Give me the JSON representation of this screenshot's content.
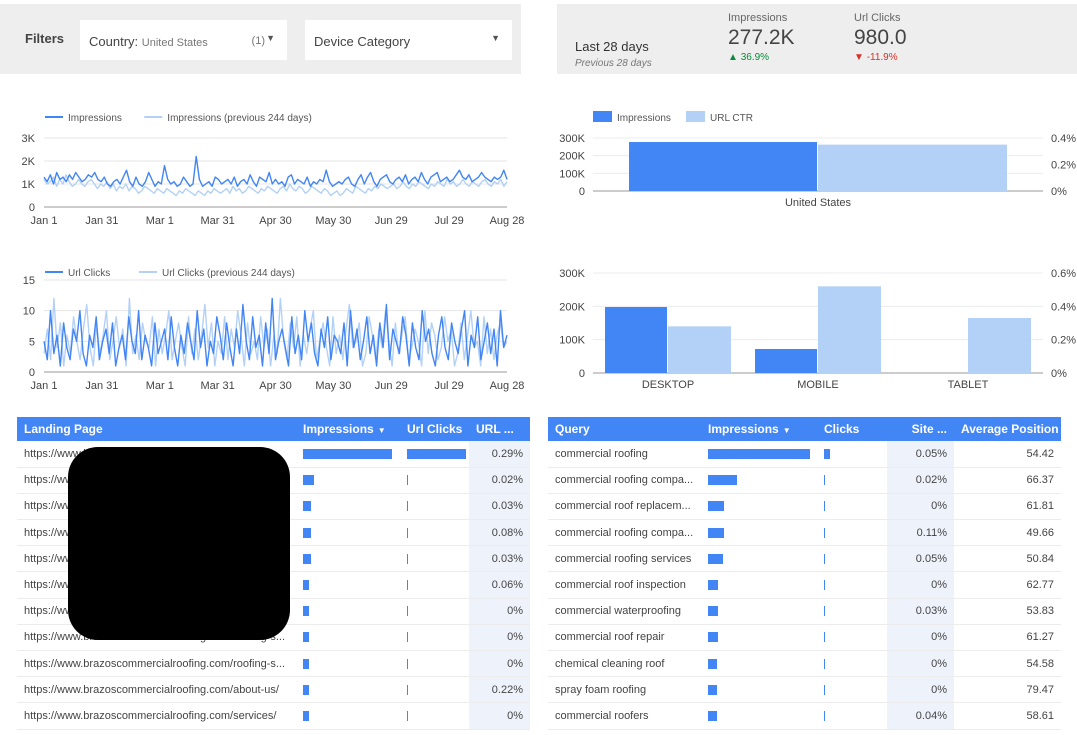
{
  "filters": {
    "label": "Filters",
    "country_label": "Country:",
    "country_value": "United States",
    "country_count": "(1)",
    "device_label": "Device Category"
  },
  "scorecard": {
    "range": "Last 28 days",
    "previous": "Previous 28 days",
    "impressions_label": "Impressions",
    "impressions_value": "277.2K",
    "impressions_delta": "36.9%",
    "clicks_label": "Url Clicks",
    "clicks_value": "980.0",
    "clicks_delta": "-11.9%"
  },
  "colors": {
    "primary": "#4285f4",
    "secondary": "#b3d1f7",
    "up": "#0a8a3a",
    "down": "#d93025"
  },
  "chart_data": [
    {
      "type": "line",
      "x_ticks": [
        "Jan 1",
        "Jan 31",
        "Mar 1",
        "Mar 31",
        "Apr 30",
        "May 30",
        "Jun 29",
        "Jul 29",
        "Aug 28"
      ],
      "y_ticks": [
        "0",
        "1K",
        "2K",
        "3K"
      ],
      "ylim": [
        0,
        3000
      ],
      "series": [
        {
          "name": "Impressions",
          "color": "#4285f4",
          "values": [
            1300,
            1100,
            1400,
            1000,
            1500,
            1200,
            1300,
            1100,
            1400,
            1200,
            1500,
            1300,
            1100,
            1200,
            1400,
            1300,
            1500,
            1200,
            1100,
            1300,
            1000,
            900,
            1100,
            1200,
            1000,
            1300,
            1600,
            1100,
            900,
            1300,
            1000,
            900,
            1100,
            1500,
            1200,
            900,
            1100,
            1000,
            1800,
            1200,
            1000,
            1100,
            900,
            1000,
            1300,
            1100,
            900,
            1000,
            2200,
            1200,
            900,
            1000,
            1100,
            900,
            1300,
            1200,
            1000,
            1100,
            1200,
            1000,
            1300,
            900,
            1100,
            1200,
            1000,
            1400,
            1100,
            900,
            1300,
            1200,
            1100,
            1500,
            1000,
            1200,
            1000,
            1100,
            900,
            1300,
            1400,
            1000,
            1200,
            1100,
            1000,
            1300,
            900,
            1100,
            1000,
            1200,
            1100,
            1600,
            1100,
            900,
            1000,
            1100,
            1000,
            1200,
            1300,
            1000,
            900,
            1200,
            1400,
            1000,
            1300,
            1500,
            1100,
            900,
            1200,
            1300,
            1400,
            1100,
            1000,
            1200,
            1300,
            1100,
            1400,
            1000,
            1200,
            1300,
            1100,
            1500,
            1200,
            1000,
            1300,
            1400,
            1500,
            1100,
            1200,
            1300,
            1100,
            1200,
            1400,
            1600,
            1300,
            1200,
            1400,
            1100,
            1200,
            1300,
            1500,
            1300,
            1200,
            1100,
            1300,
            1200,
            1300,
            1600,
            1200
          ]
        },
        {
          "name": "Impressions (previous 244 days)",
          "color": "#b3d1f7",
          "values": [
            1200,
            1000,
            1100,
            1300,
            900,
            1200,
            1000,
            1400,
            1100,
            900,
            1000,
            1200,
            1000,
            900,
            1100,
            1200,
            1000,
            800,
            1000,
            900,
            1100,
            800,
            1000,
            700,
            900,
            800,
            1000,
            700,
            900,
            800,
            600,
            700,
            900,
            800,
            700,
            600,
            800,
            700,
            600,
            800,
            700,
            600,
            500,
            700,
            600,
            800,
            700,
            600,
            500,
            700,
            600,
            500,
            700,
            600,
            800,
            700,
            600,
            700,
            800,
            600,
            900,
            700,
            800,
            600,
            700,
            900,
            800,
            700,
            600,
            800,
            700,
            900,
            800,
            700,
            600,
            800,
            900,
            700,
            1000,
            800,
            700,
            900,
            800,
            600,
            700,
            900,
            800,
            700,
            600,
            800,
            700,
            500,
            600,
            700,
            500,
            600,
            800,
            700,
            600,
            900,
            800,
            700,
            600,
            800,
            700,
            900,
            800,
            1000,
            900,
            800,
            900,
            1000,
            800,
            900,
            1100,
            900,
            800,
            1000,
            900,
            1100,
            1000,
            900,
            800,
            1000,
            900,
            1100,
            1000,
            900,
            1200,
            1000,
            1100,
            900,
            1000,
            1200,
            1000,
            900,
            1100,
            1000,
            900,
            1100,
            1200,
            1000,
            900,
            1100,
            1000,
            1200,
            900,
            1100
          ]
        }
      ]
    },
    {
      "type": "line",
      "x_ticks": [
        "Jan 1",
        "Jan 31",
        "Mar 1",
        "Mar 31",
        "Apr 30",
        "May 30",
        "Jun 29",
        "Jul 29",
        "Aug 28"
      ],
      "y_ticks": [
        "0",
        "5",
        "10",
        "15"
      ],
      "ylim": [
        0,
        15
      ],
      "series": [
        {
          "name": "Url Clicks",
          "color": "#4285f4",
          "values": [
            5,
            2,
            10,
            3,
            6,
            1,
            8,
            4,
            2,
            7,
            5,
            10,
            3,
            1,
            6,
            4,
            9,
            2,
            5,
            7,
            3,
            8,
            1,
            4,
            6,
            2,
            9,
            5,
            3,
            10,
            2,
            6,
            4,
            1,
            8,
            3,
            5,
            7,
            2,
            9,
            4,
            1,
            6,
            3,
            8,
            5,
            2,
            10,
            4,
            7,
            1,
            5,
            3,
            9,
            6,
            2,
            8,
            4,
            1,
            7,
            3,
            11,
            5,
            2,
            9,
            4,
            6,
            1,
            8,
            3,
            12,
            2,
            5,
            7,
            4,
            1,
            9,
            3,
            6,
            2,
            10,
            5,
            8,
            3,
            1,
            7,
            4,
            9,
            2,
            6,
            5,
            3,
            8,
            1,
            10,
            4,
            7,
            2,
            5,
            9,
            3,
            6,
            1,
            8,
            4,
            11,
            2,
            7,
            5,
            3,
            9,
            6,
            1,
            8,
            4,
            2,
            10,
            5,
            7,
            3,
            1,
            6,
            9,
            4,
            2,
            8,
            5,
            3,
            7,
            10,
            1,
            6,
            4,
            9,
            2,
            5,
            8,
            3,
            7,
            1,
            10,
            4,
            6
          ]
        },
        {
          "name": "Url Clicks (previous 244 days)",
          "color": "#b3d1f7",
          "values": [
            3,
            7,
            2,
            12,
            4,
            8,
            1,
            6,
            3,
            9,
            5,
            2,
            7,
            11,
            4,
            1,
            8,
            3,
            6,
            10,
            2,
            5,
            9,
            4,
            7,
            1,
            12,
            3,
            6,
            2,
            8,
            5,
            4,
            9,
            1,
            7,
            3,
            6,
            10,
            2,
            5,
            8,
            4,
            1,
            9,
            3,
            7,
            2,
            6,
            11,
            4,
            8,
            1,
            5,
            3,
            9,
            2,
            7,
            4,
            10,
            6,
            1,
            8,
            3,
            5,
            2,
            9,
            4,
            7,
            1,
            6,
            3,
            12,
            5,
            2,
            8,
            4,
            9,
            1,
            6,
            3,
            7,
            10,
            2,
            5,
            8,
            4,
            1,
            9,
            3,
            6,
            2,
            7,
            11,
            4,
            5,
            8,
            1,
            3,
            9,
            6,
            2,
            7,
            4,
            10,
            5,
            1,
            8,
            3,
            6,
            9,
            2,
            4,
            7,
            5,
            1,
            10,
            3,
            8,
            6,
            2,
            4,
            9,
            5,
            7,
            1,
            3,
            8,
            2,
            6,
            10,
            4,
            5,
            1,
            9,
            3,
            7,
            2,
            6,
            8,
            4,
            5
          ]
        }
      ]
    },
    {
      "type": "bar",
      "categories": [
        "United States"
      ],
      "series": [
        {
          "name": "Impressions",
          "axis": "left",
          "values": [
            277200
          ]
        },
        {
          "name": "URL CTR",
          "axis": "right",
          "values": [
            0.0035
          ]
        }
      ],
      "left_ticks": [
        "0",
        "100K",
        "200K",
        "300K"
      ],
      "right_ticks": [
        "0%",
        "0.2%",
        "0.4%"
      ],
      "ylim_left": [
        0,
        300000
      ],
      "ylim_right": [
        0,
        0.004
      ]
    },
    {
      "type": "bar",
      "categories": [
        "DESKTOP",
        "MOBILE",
        "TABLET"
      ],
      "series": [
        {
          "name": "Impressions",
          "axis": "left",
          "values": [
            198000,
            72000,
            0
          ]
        },
        {
          "name": "URL CTR",
          "axis": "right",
          "values": [
            0.0028,
            0.0052,
            0.0033
          ]
        }
      ],
      "left_ticks": [
        "0",
        "100K",
        "200K",
        "300K"
      ],
      "right_ticks": [
        "0%",
        "0.2%",
        "0.4%",
        "0.6%"
      ],
      "ylim_left": [
        0,
        300000
      ],
      "ylim_right": [
        0,
        0.006
      ]
    }
  ],
  "landing_table": {
    "headers": [
      "Landing Page",
      "Impressions",
      "Url Clicks",
      "URL ..."
    ],
    "rows": [
      {
        "page": "https://www.br",
        "impr": 1.0,
        "clicks": 1.0,
        "ctr": "0.29%"
      },
      {
        "page": "https://www",
        "impr": 0.12,
        "clicks": 0.02,
        "ctr": "0.02%"
      },
      {
        "page": "https://www",
        "impr": 0.09,
        "clicks": 0.02,
        "ctr": "0.03%"
      },
      {
        "page": "https://www",
        "impr": 0.09,
        "clicks": 0.02,
        "ctr": "0.08%"
      },
      {
        "page": "https://www",
        "impr": 0.09,
        "clicks": 0.02,
        "ctr": "0.03%"
      },
      {
        "page": "https://www",
        "impr": 0.06,
        "clicks": 0.02,
        "ctr": "0.06%"
      },
      {
        "page": "https://www",
        "impr": 0.05,
        "clicks": 0.02,
        "ctr": "0%"
      },
      {
        "page": "https://www.brazoscommercialroofing.com/roofing-s...",
        "impr": 0.04,
        "clicks": 0.02,
        "ctr": "0%"
      },
      {
        "page": "https://www.brazoscommercialroofing.com/roofing-s...",
        "impr": 0.03,
        "clicks": 0.02,
        "ctr": "0%"
      },
      {
        "page": "https://www.brazoscommercialroofing.com/about-us/",
        "impr": 0.03,
        "clicks": 0.02,
        "ctr": "0.22%"
      },
      {
        "page": "https://www.brazoscommercialroofing.com/services/",
        "impr": 0.03,
        "clicks": 0.02,
        "ctr": "0%"
      }
    ]
  },
  "query_table": {
    "headers": [
      "Query",
      "Impressions",
      "Clicks",
      "Site ...",
      "Average Position"
    ],
    "rows": [
      {
        "query": "commercial roofing",
        "impr": 1.0,
        "clicks": 0.06,
        "site": "0.05%",
        "pos": "54.42"
      },
      {
        "query": "commercial roofing compa...",
        "impr": 0.28,
        "clicks": 0.01,
        "site": "0.02%",
        "pos": "66.37"
      },
      {
        "query": "commercial roof replacem...",
        "impr": 0.16,
        "clicks": 0.01,
        "site": "0%",
        "pos": "61.81"
      },
      {
        "query": "commercial roofing compa...",
        "impr": 0.16,
        "clicks": 0.02,
        "site": "0.11%",
        "pos": "49.66"
      },
      {
        "query": "commercial roofing services",
        "impr": 0.15,
        "clicks": 0.01,
        "site": "0.05%",
        "pos": "50.84"
      },
      {
        "query": "commercial roof inspection",
        "impr": 0.1,
        "clicks": 0.01,
        "site": "0%",
        "pos": "62.77"
      },
      {
        "query": "commercial waterproofing",
        "impr": 0.1,
        "clicks": 0.01,
        "site": "0.03%",
        "pos": "53.83"
      },
      {
        "query": "commercial roof repair",
        "impr": 0.1,
        "clicks": 0.01,
        "site": "0%",
        "pos": "61.27"
      },
      {
        "query": "chemical cleaning roof",
        "impr": 0.09,
        "clicks": 0.01,
        "site": "0%",
        "pos": "54.58"
      },
      {
        "query": "spray foam roofing",
        "impr": 0.09,
        "clicks": 0.01,
        "site": "0%",
        "pos": "79.47"
      },
      {
        "query": "commercial roofers",
        "impr": 0.09,
        "clicks": 0.01,
        "site": "0.04%",
        "pos": "58.61"
      }
    ]
  }
}
